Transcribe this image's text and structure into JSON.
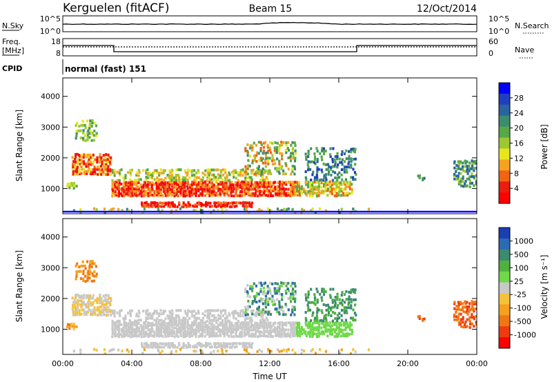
{
  "header": {
    "station": "Kerguelen (fitACF)",
    "beam": "Beam 15",
    "date": "12/Oct/2014"
  },
  "top_panels": {
    "nsky_label": "N.Sky",
    "nsearch_label": "N.Search",
    "noise_ticks": [
      "10^5",
      "10^0"
    ],
    "freq_label": "Freq.",
    "freq_unit": "[MHz]",
    "freq_ticks": [
      "18",
      "8"
    ],
    "nave_label": "Nave",
    "nave_ticks": [
      "60",
      "0"
    ],
    "cpid_label": "CPID",
    "cpid_value": "normal (fast) 151"
  },
  "chart_data": [
    {
      "type": "heatmap",
      "name": "power",
      "ylabel": "Slant Range [km]",
      "yticks": [
        1000,
        2000,
        3000,
        4000
      ],
      "ylim": [
        180,
        4600
      ],
      "xlim": [
        0,
        24
      ],
      "colorbar_label": "Power [dB]",
      "colorbar_ticks": [
        "4",
        "8",
        "12",
        "16",
        "20",
        "24",
        "28"
      ],
      "colorbar_colors": [
        "#0000ff",
        "#1f3fbf",
        "#2a64a0",
        "#3c8c6e",
        "#58a848",
        "#9ec832",
        "#e6e61e",
        "#f5a31e",
        "#f06414",
        "#e81e0e",
        "#ff0000"
      ]
    },
    {
      "type": "heatmap",
      "name": "velocity",
      "ylabel": "Slant Range [km]",
      "yticks": [
        1000,
        2000,
        3000,
        4000
      ],
      "ylim": [
        180,
        4600
      ],
      "xlim": [
        0,
        24
      ],
      "xlabel": "Time UT",
      "xticks": [
        "00:00",
        "04:00",
        "08:00",
        "12:00",
        "16:00",
        "20:00",
        "00:00"
      ],
      "colorbar_label": "Velocity [m s⁻¹]",
      "colorbar_ticks": [
        "1000",
        "500",
        "100",
        "25",
        "-25",
        "-100",
        "-500",
        "-1000"
      ],
      "colorbar_colors": [
        "#1a3fb0",
        "#2b6ab5",
        "#3c8a70",
        "#4fb040",
        "#70d84a",
        "#c8c8c8",
        "#f5c23a",
        "#f5a01e",
        "#f07814",
        "#ee3c10",
        "#ff0000"
      ]
    }
  ]
}
